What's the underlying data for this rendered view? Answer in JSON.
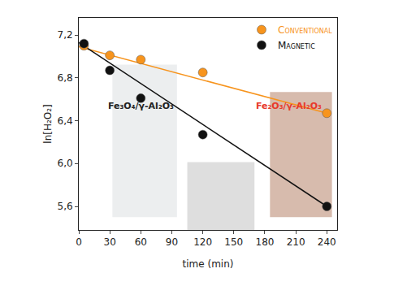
{
  "chart_data": {
    "type": "scatter",
    "x_label": "time (min)",
    "y_label": "ln[H₂O₂]",
    "xlim": [
      0,
      250
    ],
    "xticks": [
      0,
      30,
      60,
      90,
      120,
      150,
      180,
      210,
      240
    ],
    "ylim": [
      5.38,
      7.36
    ],
    "yticks": [
      {
        "value": 5.6,
        "label": "5,6"
      },
      {
        "value": 6.0,
        "label": "6,0"
      },
      {
        "value": 6.4,
        "label": "6,4"
      },
      {
        "value": 6.8,
        "label": "6,8"
      },
      {
        "value": 7.2,
        "label": "7,2"
      }
    ],
    "grid": false,
    "legend": "top-right",
    "series": [
      {
        "name": "Conventional",
        "color": "#f7941d",
        "marker": "circle",
        "x": [
          5,
          30,
          60,
          120,
          240
        ],
        "values": [
          7.1,
          7.01,
          6.97,
          6.85,
          6.47
        ],
        "fit_x": [
          0,
          240
        ],
        "fit_values": [
          7.09,
          6.47
        ]
      },
      {
        "name": "Magnetic",
        "color": "#111111",
        "marker": "circle",
        "x": [
          5,
          30,
          60,
          120,
          240
        ],
        "values": [
          7.12,
          6.87,
          6.61,
          6.27,
          5.6
        ],
        "fit_x": [
          0,
          240
        ],
        "fit_values": [
          7.13,
          5.6
        ]
      }
    ],
    "annotations": [
      {
        "text": "Fe₃O₄/γ-Al₂O₃",
        "x": 60,
        "y": 6.54,
        "color": "#222222"
      },
      {
        "text": "Fe₂O₃/γ-Al₂O₃",
        "x": 203,
        "y": 6.54,
        "color": "#e8392b"
      }
    ]
  }
}
